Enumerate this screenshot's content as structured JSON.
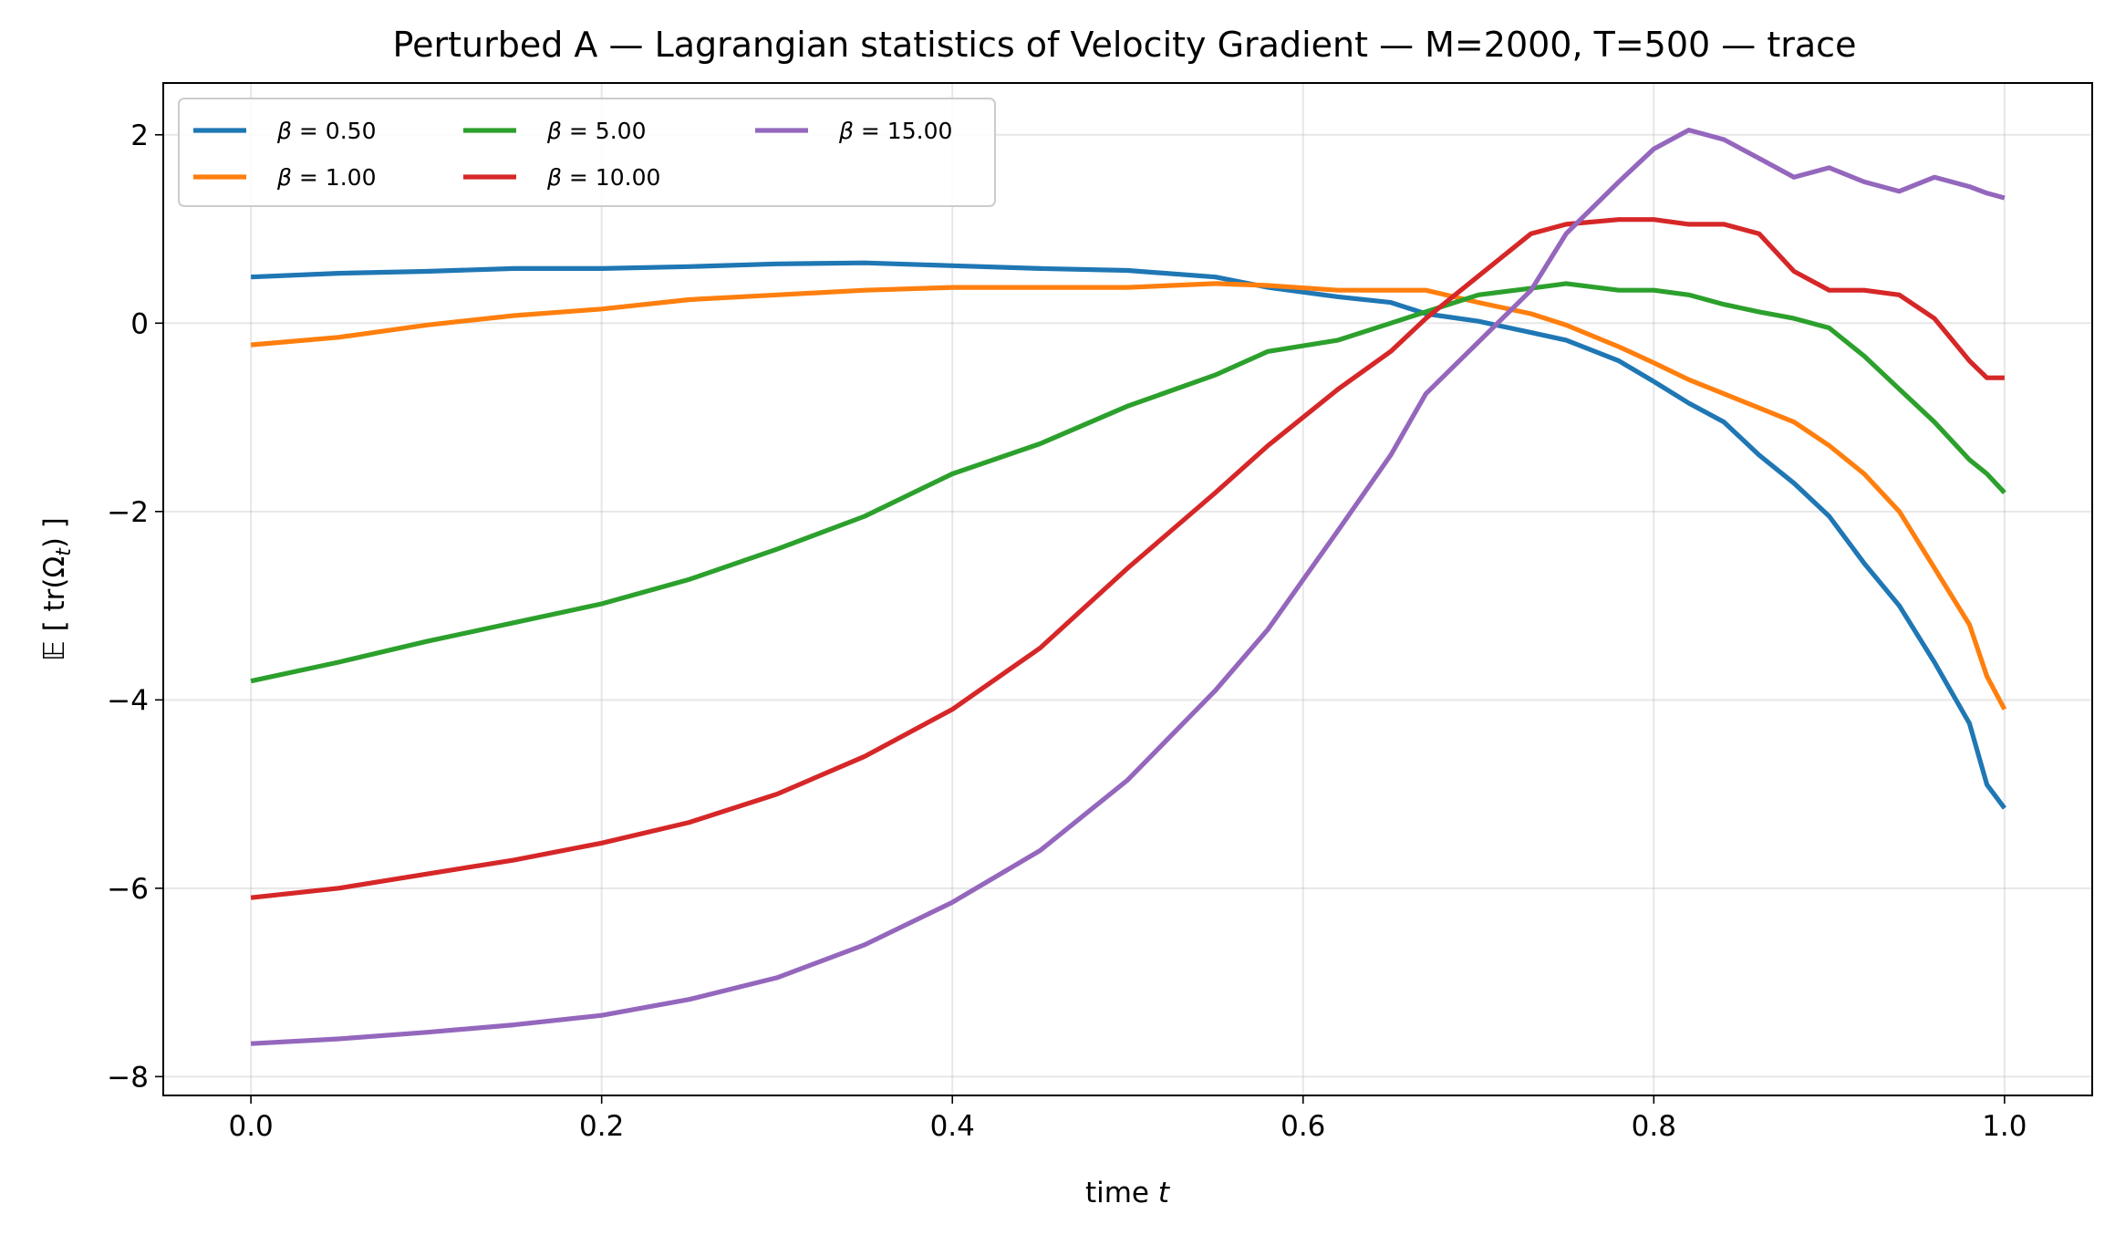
{
  "chart_data": {
    "type": "line",
    "title": "Perturbed A — Lagrangian statistics of Velocity Gradient — M=2000, T=500 — trace",
    "xlabel": "time t",
    "ylabel": "𝔼 [ tr(Ω_t) ]",
    "xlim": [
      -0.05,
      1.05
    ],
    "ylim": [
      -8.2,
      2.55
    ],
    "x_ticks": [
      0.0,
      0.2,
      0.4,
      0.6,
      0.8,
      1.0
    ],
    "x_tick_labels": [
      "0.0",
      "0.2",
      "0.4",
      "0.6",
      "0.8",
      "1.0"
    ],
    "y_ticks": [
      -8,
      -6,
      -4,
      -2,
      0,
      2
    ],
    "y_tick_labels": [
      "−8",
      "−6",
      "−4",
      "−2",
      "0",
      "2"
    ],
    "grid": true,
    "legend_position": "top-left",
    "legend_columns": 3,
    "series": [
      {
        "name": "β = 0.50",
        "color": "#1f77b4",
        "x": [
          0,
          0.05,
          0.1,
          0.15,
          0.2,
          0.25,
          0.3,
          0.35,
          0.4,
          0.45,
          0.5,
          0.55,
          0.58,
          0.62,
          0.65,
          0.67,
          0.7,
          0.73,
          0.75,
          0.78,
          0.8,
          0.82,
          0.84,
          0.86,
          0.88,
          0.9,
          0.92,
          0.94,
          0.96,
          0.98,
          0.99,
          1.0
        ],
        "y": [
          0.49,
          0.53,
          0.55,
          0.58,
          0.58,
          0.6,
          0.63,
          0.64,
          0.61,
          0.58,
          0.56,
          0.49,
          0.38,
          0.28,
          0.22,
          0.1,
          0.02,
          -0.1,
          -0.18,
          -0.4,
          -0.62,
          -0.85,
          -1.05,
          -1.4,
          -1.7,
          -2.05,
          -2.55,
          -3.0,
          -3.6,
          -4.25,
          -4.9,
          -5.15
        ]
      },
      {
        "name": "β = 1.00",
        "color": "#ff7f0e",
        "x": [
          0,
          0.05,
          0.1,
          0.15,
          0.2,
          0.25,
          0.3,
          0.35,
          0.4,
          0.45,
          0.5,
          0.55,
          0.58,
          0.62,
          0.65,
          0.67,
          0.7,
          0.73,
          0.75,
          0.78,
          0.8,
          0.82,
          0.84,
          0.86,
          0.88,
          0.9,
          0.92,
          0.94,
          0.96,
          0.98,
          0.99,
          1.0
        ],
        "y": [
          -0.23,
          -0.15,
          -0.02,
          0.08,
          0.15,
          0.25,
          0.3,
          0.35,
          0.38,
          0.38,
          0.38,
          0.42,
          0.4,
          0.35,
          0.35,
          0.35,
          0.22,
          0.1,
          -0.02,
          -0.25,
          -0.42,
          -0.6,
          -0.75,
          -0.9,
          -1.05,
          -1.3,
          -1.6,
          -2.0,
          -2.6,
          -3.2,
          -3.75,
          -4.1
        ]
      },
      {
        "name": "β = 5.00",
        "color": "#2ca02c",
        "x": [
          0,
          0.05,
          0.1,
          0.15,
          0.2,
          0.25,
          0.3,
          0.35,
          0.4,
          0.45,
          0.5,
          0.55,
          0.58,
          0.62,
          0.65,
          0.67,
          0.7,
          0.73,
          0.75,
          0.78,
          0.8,
          0.82,
          0.84,
          0.86,
          0.88,
          0.9,
          0.92,
          0.94,
          0.96,
          0.98,
          0.99,
          1.0
        ],
        "y": [
          -3.8,
          -3.6,
          -3.38,
          -3.18,
          -2.98,
          -2.72,
          -2.4,
          -2.05,
          -1.6,
          -1.28,
          -0.88,
          -0.55,
          -0.3,
          -0.18,
          0.0,
          0.12,
          0.3,
          0.37,
          0.42,
          0.35,
          0.35,
          0.3,
          0.2,
          0.12,
          0.05,
          -0.05,
          -0.35,
          -0.7,
          -1.05,
          -1.45,
          -1.6,
          -1.8
        ]
      },
      {
        "name": "β = 10.00",
        "color": "#d62728",
        "x": [
          0,
          0.05,
          0.1,
          0.15,
          0.2,
          0.25,
          0.3,
          0.35,
          0.4,
          0.45,
          0.5,
          0.55,
          0.58,
          0.62,
          0.65,
          0.67,
          0.7,
          0.73,
          0.75,
          0.78,
          0.8,
          0.82,
          0.84,
          0.86,
          0.88,
          0.9,
          0.92,
          0.94,
          0.96,
          0.98,
          0.99,
          1.0
        ],
        "y": [
          -6.1,
          -6.0,
          -5.85,
          -5.7,
          -5.52,
          -5.3,
          -5.0,
          -4.6,
          -4.1,
          -3.45,
          -2.6,
          -1.8,
          -1.3,
          -0.7,
          -0.3,
          0.05,
          0.5,
          0.95,
          1.05,
          1.1,
          1.1,
          1.05,
          1.05,
          0.95,
          0.55,
          0.35,
          0.35,
          0.3,
          0.05,
          -0.4,
          -0.58,
          -0.58
        ]
      },
      {
        "name": "β = 15.00",
        "color": "#9467bd",
        "x": [
          0,
          0.05,
          0.1,
          0.15,
          0.2,
          0.25,
          0.3,
          0.35,
          0.4,
          0.45,
          0.5,
          0.55,
          0.58,
          0.62,
          0.65,
          0.67,
          0.7,
          0.73,
          0.75,
          0.78,
          0.8,
          0.82,
          0.84,
          0.86,
          0.88,
          0.9,
          0.92,
          0.94,
          0.96,
          0.98,
          0.99,
          1.0
        ],
        "y": [
          -7.65,
          -7.6,
          -7.53,
          -7.45,
          -7.35,
          -7.18,
          -6.95,
          -6.6,
          -6.15,
          -5.6,
          -4.85,
          -3.9,
          -3.25,
          -2.2,
          -1.4,
          -0.75,
          -0.2,
          0.35,
          0.95,
          1.5,
          1.85,
          2.05,
          1.95,
          1.75,
          1.55,
          1.65,
          1.5,
          1.4,
          1.55,
          1.45,
          1.38,
          1.33
        ]
      }
    ]
  }
}
